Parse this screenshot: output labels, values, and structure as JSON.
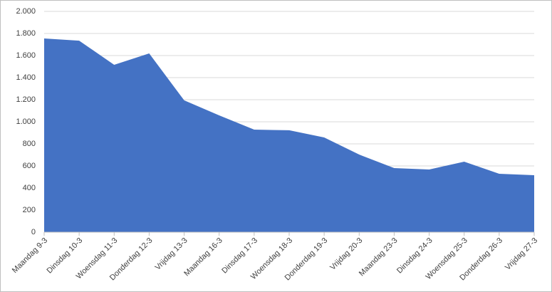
{
  "chart_data": {
    "type": "area",
    "categories": [
      "Maandag 9-3",
      "Dinsdag 10-3",
      "Woensdag 11-3",
      "Donderdag 12-3",
      "Vrijdag 13-3",
      "Maandag 16-3",
      "Dinsdag 17-3",
      "Woensdag 18-3",
      "Donderdag 19-3",
      "Vrijdag 20-3",
      "Maandag 23-3",
      "Dinsdag 24-3",
      "Woensdag 25-3",
      "Donderdag 26-3",
      "Vrijdag 27-3"
    ],
    "values": [
      1755,
      1735,
      1516,
      1619,
      1194,
      1058,
      929,
      923,
      858,
      703,
      581,
      568,
      639,
      529,
      516
    ],
    "color": "#4472c4",
    "ylim": [
      0,
      2000
    ],
    "yticks": [
      0,
      200,
      400,
      600,
      800,
      {
        "value": 1000,
        "label": "1.000"
      },
      {
        "value": 1200,
        "label": "1.200"
      },
      {
        "value": 1400,
        "label": "1.400"
      },
      {
        "value": 1600,
        "label": "1.600"
      },
      {
        "value": 1800,
        "label": "1.800"
      },
      {
        "value": 2000,
        "label": "2.000"
      }
    ],
    "grid": true
  }
}
